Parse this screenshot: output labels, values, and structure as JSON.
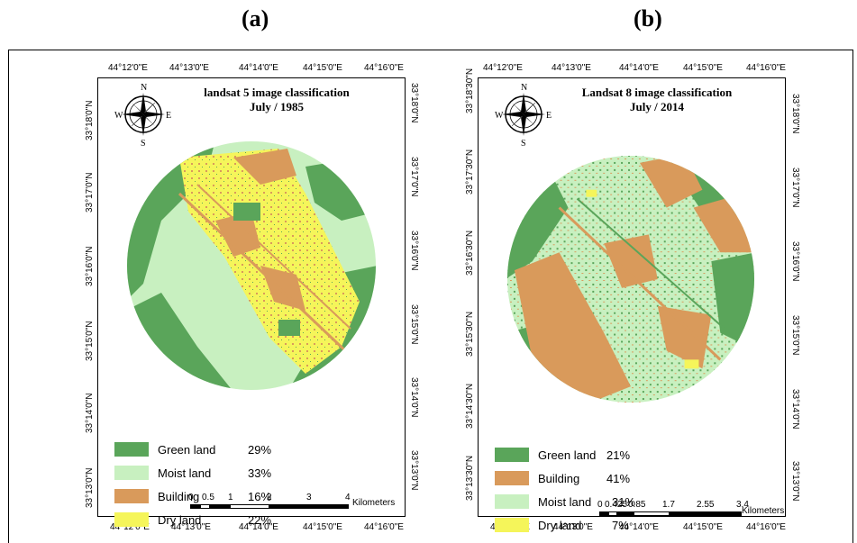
{
  "panel_a": {
    "letter": "(a)",
    "title_line1": "landsat 5 image classification",
    "title_line2": "July / 1985",
    "lon_labels": [
      "44°12'0\"E",
      "44°13'0\"E",
      "44°14'0\"E",
      "44°15'0\"E",
      "44°16'0\"E"
    ],
    "lat_labels": [
      "33°18'0\"N",
      "33°17'0\"N",
      "33°16'0\"N",
      "33°15'0\"N",
      "33°14'0\"N",
      "33°13'0\"N"
    ],
    "legend": [
      {
        "label": "Green land",
        "pct": "29%",
        "color": "#5aa55a"
      },
      {
        "label": "Moist land",
        "pct": "33%",
        "color": "#c8f0c0"
      },
      {
        "label": "Building",
        "pct": "16%",
        "color": "#d99a5b"
      },
      {
        "label": "Dry land",
        "pct": "22%",
        "color": "#f5f55a"
      }
    ],
    "scale_labels": [
      "0",
      "0.5",
      "1",
      "2",
      "3",
      "4"
    ],
    "scale_unit": "Kilometers"
  },
  "panel_b": {
    "letter": "(b)",
    "title_line1": "Landsat 8 image classification",
    "title_line2": "July / 2014",
    "lon_labels": [
      "44°12'0\"E",
      "44°13'0\"E",
      "44°14'0\"E",
      "44°15'0\"E",
      "44°16'0\"E"
    ],
    "lat_labels_left": [
      "33°18'30\"N",
      "33°17'30\"N",
      "33°16'30\"N",
      "33°15'30\"N",
      "33°14'30\"N",
      "33°13'30\"N"
    ],
    "lat_labels_right": [
      "33°18'0\"N",
      "33°17'0\"N",
      "33°16'0\"N",
      "33°15'0\"N",
      "33°14'0\"N",
      "33°13'0\"N"
    ],
    "legend": [
      {
        "label": "Green land",
        "pct": "21%",
        "color": "#5aa55a"
      },
      {
        "label": "Building",
        "pct": "41%",
        "color": "#d99a5b"
      },
      {
        "label": "Moist land",
        "pct": "31%",
        "color": "#c8f0c0"
      },
      {
        "label": "Dry land",
        "pct": "7%",
        "color": "#f5f55a"
      }
    ],
    "scale_labels": [
      "0",
      "0.425",
      "0.85",
      "1.7",
      "2.55",
      "3.4"
    ],
    "scale_unit": "Kilometers"
  },
  "compass": {
    "n": "N",
    "s": "S",
    "e": "E",
    "w": "W",
    "icon": "compass-rose-icon"
  }
}
